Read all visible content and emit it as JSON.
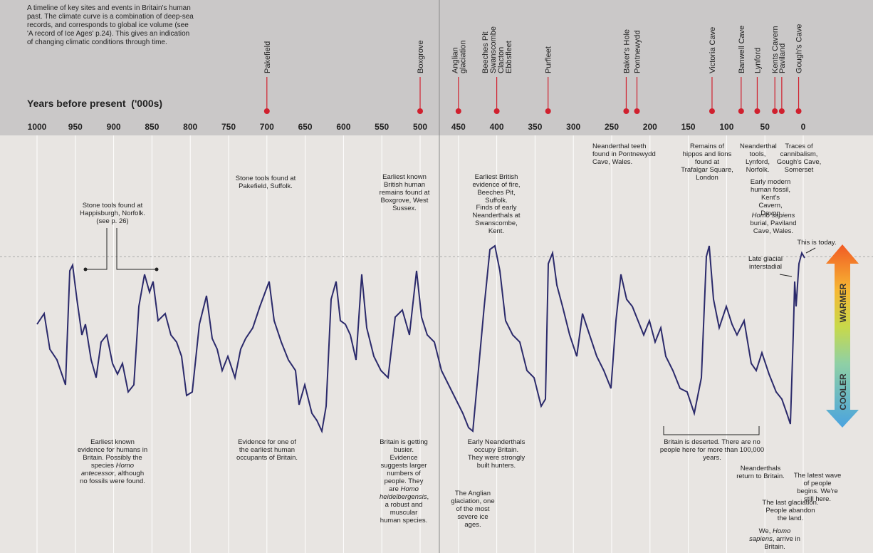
{
  "intro": [
    "A timeline of key sites and events in Britain's human",
    "past. The climate curve is a combination of deep-sea",
    "records, and corresponds to global ice volume (see",
    "'A record of Ice Ages' p.24). This gives an indication",
    "of changing climatic conditions through time."
  ],
  "axis_title": "Years before present",
  "axis_unit": "('000s)",
  "ticks": [
    1000,
    950,
    900,
    850,
    800,
    750,
    700,
    650,
    600,
    550,
    500,
    450,
    400,
    350,
    300,
    250,
    200,
    150,
    100,
    50,
    0
  ],
  "sites": [
    {
      "label": [
        "Pakefield"
      ],
      "year": 700
    },
    {
      "label": [
        "Boxgrove"
      ],
      "year": 500
    },
    {
      "label": [
        "Anglian",
        "glaciation"
      ],
      "year": 450
    },
    {
      "label": [
        "Beeches Pit",
        "Swanscombe",
        "Clacton",
        "Ebbsfleet"
      ],
      "year": 400
    },
    {
      "label": [
        "Purfleet"
      ],
      "year": 333
    },
    {
      "label": [
        "Baker's Hole"
      ],
      "year": 231
    },
    {
      "label": [
        "Pontnewydd"
      ],
      "year": 217
    },
    {
      "label": [
        "Victoria Cave"
      ],
      "year": 119
    },
    {
      "label": [
        "Banwell Cave"
      ],
      "year": 81
    },
    {
      "label": [
        "Lynford"
      ],
      "year": 60
    },
    {
      "label": [
        "Kents Cavern"
      ],
      "year": 37
    },
    {
      "label": [
        "Paviland"
      ],
      "year": 28
    },
    {
      "label": [
        "Gough's Cave"
      ],
      "year": 6
    }
  ],
  "annotations": [
    [
      "Stone tools found at Happisburgh, Norfolk. (see p. 26)"
    ],
    [
      "Stone tools found at Pakefield, Suffolk."
    ],
    [
      "Earliest known British human remains found at Boxgrove, West Sussex."
    ],
    [
      "Earliest British evidence of fire, Beeches Pit, Suffolk."
    ],
    [
      "Finds of early Neanderthals at Swanscombe, Kent."
    ],
    [
      "Neanderthal teeth found in Pontnewydd Cave, Wales."
    ],
    [
      "Remains of hippos and lions found at Trafalgar Square, London"
    ],
    [
      "Neanderthal tools, Lynford, Norfolk."
    ],
    [
      "Traces of cannibalism, Gough's Cave, Somerset"
    ],
    [
      "Early modern human fossil, Kent's Cavern, Devon"
    ],
    [
      "Homo sapiens",
      " burial, Paviland Cave, Wales."
    ],
    [
      "This is today."
    ],
    [
      "Late glacial interstadial"
    ],
    [
      "Earliest known evidence for humans in Britain. Possibly the species ",
      "Homo antecessor",
      ", although no fossils were found."
    ],
    [
      "Evidence for one of the earliest human occupants of Britain."
    ],
    [
      "Britain is getting busier. Evidence suggests larger numbers of people. They are ",
      "Homo heidelbergensis",
      ", a robust and muscular human species."
    ],
    [
      "Early Neanderthals occupy Britain. They were strongly built hunters."
    ],
    [
      "The Anglian glaciation, one of the most severe ice ages."
    ],
    [
      "Britain is deserted. There are no people here for more than 100,000 years."
    ],
    [
      "Neanderthals return to Britain."
    ],
    [
      "The latest wave of people begins. We're still here."
    ],
    [
      "The last glaciation. People abandon the land."
    ],
    [
      "We, ",
      "Homo sapiens",
      ", arrive in Britain."
    ]
  ],
  "legend": {
    "warm": "WARMER",
    "cool": "COOLER"
  }
}
